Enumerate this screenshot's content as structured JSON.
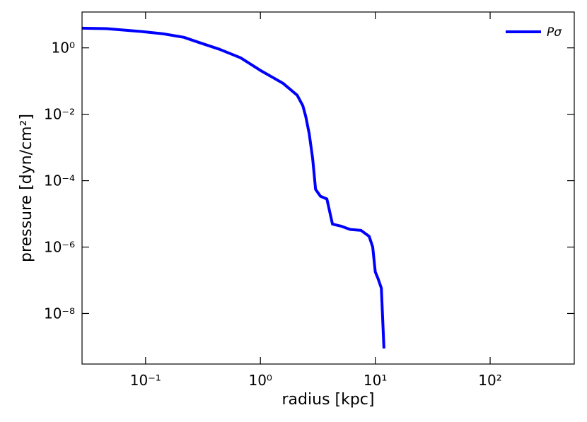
{
  "chart_data": {
    "type": "line",
    "xlabel": "radius [kpc]",
    "ylabel": "pressure [dyn/cm²]",
    "xscale": "log",
    "yscale": "log",
    "xlim": [
      0.028,
      540
    ],
    "ylim": [
      3e-10,
      12
    ],
    "xticks": [
      {
        "value": 0.1,
        "label": "10⁻¹"
      },
      {
        "value": 1,
        "label": "10⁰"
      },
      {
        "value": 10,
        "label": "10¹"
      },
      {
        "value": 100,
        "label": "10²"
      }
    ],
    "yticks": [
      {
        "value": 1e-08,
        "label": "10⁻⁸"
      },
      {
        "value": 1e-06,
        "label": "10⁻⁶"
      },
      {
        "value": 0.0001,
        "label": "10⁻⁴"
      },
      {
        "value": 0.01,
        "label": "10⁻²"
      },
      {
        "value": 1,
        "label": "10⁰"
      }
    ],
    "legend": "upper right",
    "series": [
      {
        "name": "Pσ",
        "color": "#0000ff",
        "x": [
          0.0281,
          0.0455,
          0.0925,
          0.141,
          0.216,
          0.287,
          0.44,
          0.673,
          1,
          1.57,
          2.09,
          2.34,
          2.48,
          2.66,
          2.85,
          3.02,
          3.33,
          3.79,
          4.24,
          5.0,
          6.05,
          7.5,
          8.85,
          9.5,
          10,
          10.6,
          11.3,
          11.9
        ],
        "values": [
          3.9,
          3.8,
          3.1,
          2.66,
          2.08,
          1.48,
          0.906,
          0.5,
          0.209,
          0.086,
          0.0375,
          0.018,
          0.0086,
          0.0026,
          0.00046,
          5.5e-05,
          3.4e-05,
          2.8e-05,
          4.9e-06,
          4.3e-06,
          3.4e-06,
          3.2e-06,
          2.1e-06,
          1e-06,
          1.8e-07,
          1.1e-07,
          5.8e-08,
          8.8e-10
        ]
      }
    ]
  }
}
